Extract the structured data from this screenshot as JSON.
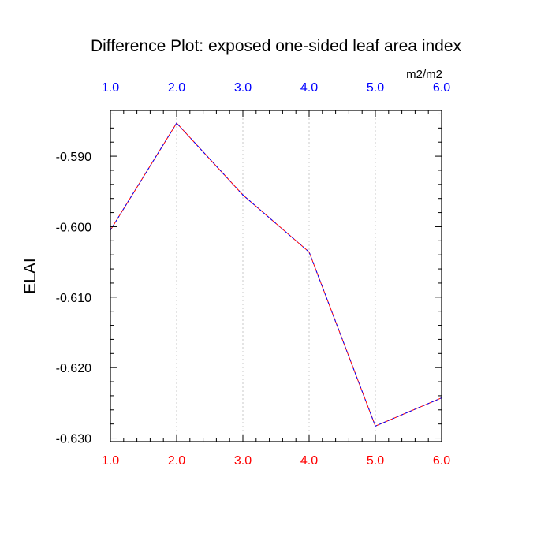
{
  "chart_data": {
    "type": "line",
    "title": "Difference Plot: exposed one-sided leaf area index",
    "units": "m2/m2",
    "ylabel": "ELAI",
    "xlim": [
      1.0,
      6.0
    ],
    "ylim": [
      -0.6305,
      -0.5835
    ],
    "x_ticks": [
      "1.0",
      "2.0",
      "3.0",
      "4.0",
      "5.0",
      "6.0"
    ],
    "x_tick_values": [
      1,
      2,
      3,
      4,
      5,
      6
    ],
    "y_ticks": [
      "-0.590",
      "-0.600",
      "-0.610",
      "-0.620",
      "-0.630"
    ],
    "y_tick_values": [
      -0.59,
      -0.6,
      -0.61,
      -0.62,
      -0.63
    ],
    "x_grid": true,
    "y_grid": false,
    "series": [
      {
        "x": [
          1,
          2,
          3,
          4,
          5,
          6
        ],
        "values": [
          -0.6005,
          -0.5853,
          -0.5955,
          -0.6036,
          -0.6283,
          -0.6243
        ],
        "colors": [
          "#ff0000",
          "#0000ff"
        ],
        "style": "dashed"
      }
    ],
    "bottom_tick_color": "#ff0000",
    "top_tick_color": "#0000ff",
    "grid_color": "#c8c8c8"
  }
}
